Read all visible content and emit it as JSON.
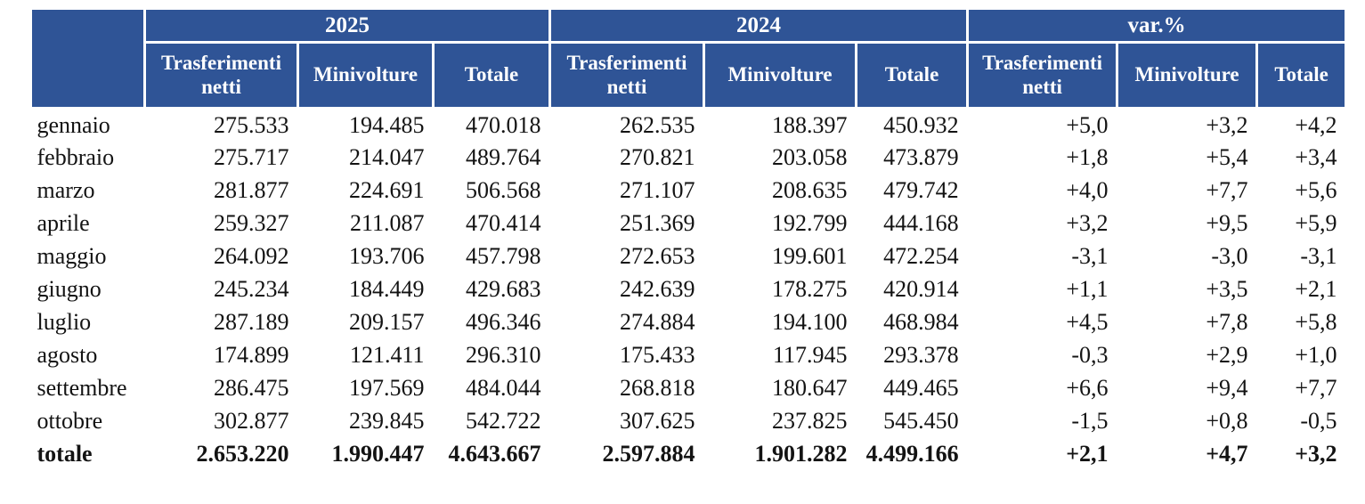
{
  "colors": {
    "header_bg": "#2F5496",
    "header_text": "#FFFFFF",
    "body_text": "#131313",
    "page_bg": "#FFFFFF"
  },
  "table": {
    "groups": [
      {
        "label": "2025"
      },
      {
        "label": "2024"
      },
      {
        "label": "var.%"
      }
    ],
    "sub_headers": [
      "Trasferimenti netti",
      "Minivolture",
      "Totale",
      "Trasferimenti netti",
      "Minivolture",
      "Totale",
      "Trasferimenti netti",
      "Minivolture",
      "Totale"
    ],
    "rows": [
      {
        "label": "gennaio",
        "bold": false,
        "values": [
          "275.533",
          "194.485",
          "470.018",
          "262.535",
          "188.397",
          "450.932",
          "+5,0",
          "+3,2",
          "+4,2"
        ]
      },
      {
        "label": "febbraio",
        "bold": false,
        "values": [
          "275.717",
          "214.047",
          "489.764",
          "270.821",
          "203.058",
          "473.879",
          "+1,8",
          "+5,4",
          "+3,4"
        ]
      },
      {
        "label": "marzo",
        "bold": false,
        "values": [
          "281.877",
          "224.691",
          "506.568",
          "271.107",
          "208.635",
          "479.742",
          "+4,0",
          "+7,7",
          "+5,6"
        ]
      },
      {
        "label": "aprile",
        "bold": false,
        "values": [
          "259.327",
          "211.087",
          "470.414",
          "251.369",
          "192.799",
          "444.168",
          "+3,2",
          "+9,5",
          "+5,9"
        ]
      },
      {
        "label": "maggio",
        "bold": false,
        "values": [
          "264.092",
          "193.706",
          "457.798",
          "272.653",
          "199.601",
          "472.254",
          "-3,1",
          "-3,0",
          "-3,1"
        ]
      },
      {
        "label": "giugno",
        "bold": false,
        "values": [
          "245.234",
          "184.449",
          "429.683",
          "242.639",
          "178.275",
          "420.914",
          "+1,1",
          "+3,5",
          "+2,1"
        ]
      },
      {
        "label": "luglio",
        "bold": false,
        "values": [
          "287.189",
          "209.157",
          "496.346",
          "274.884",
          "194.100",
          "468.984",
          "+4,5",
          "+7,8",
          "+5,8"
        ]
      },
      {
        "label": "agosto",
        "bold": false,
        "values": [
          "174.899",
          "121.411",
          "296.310",
          "175.433",
          "117.945",
          "293.378",
          "-0,3",
          "+2,9",
          "+1,0"
        ]
      },
      {
        "label": "settembre",
        "bold": false,
        "values": [
          "286.475",
          "197.569",
          "484.044",
          "268.818",
          "180.647",
          "449.465",
          "+6,6",
          "+9,4",
          "+7,7"
        ]
      },
      {
        "label": "ottobre",
        "bold": false,
        "values": [
          "302.877",
          "239.845",
          "542.722",
          "307.625",
          "237.825",
          "545.450",
          "-1,5",
          "+0,8",
          "-0,5"
        ]
      },
      {
        "label": "totale",
        "bold": true,
        "values": [
          "2.653.220",
          "1.990.447",
          "4.643.667",
          "2.597.884",
          "1.901.282",
          "4.499.166",
          "+2,1",
          "+4,7",
          "+3,2"
        ]
      }
    ]
  },
  "chart_data": {
    "type": "table",
    "title": "",
    "column_groups": [
      {
        "label": "2025",
        "columns": [
          "Trasferimenti netti",
          "Minivolture",
          "Totale"
        ]
      },
      {
        "label": "2024",
        "columns": [
          "Trasferimenti netti",
          "Minivolture",
          "Totale"
        ]
      },
      {
        "label": "var.%",
        "columns": [
          "Trasferimenti netti",
          "Minivolture",
          "Totale"
        ]
      }
    ],
    "rows": [
      {
        "label": "gennaio",
        "y2025": [
          275533,
          194485,
          470018
        ],
        "y2024": [
          262535,
          188397,
          450932
        ],
        "var_pct": [
          5.0,
          3.2,
          4.2
        ]
      },
      {
        "label": "febbraio",
        "y2025": [
          275717,
          214047,
          489764
        ],
        "y2024": [
          270821,
          203058,
          473879
        ],
        "var_pct": [
          1.8,
          5.4,
          3.4
        ]
      },
      {
        "label": "marzo",
        "y2025": [
          281877,
          224691,
          506568
        ],
        "y2024": [
          271107,
          208635,
          479742
        ],
        "var_pct": [
          4.0,
          7.7,
          5.6
        ]
      },
      {
        "label": "aprile",
        "y2025": [
          259327,
          211087,
          470414
        ],
        "y2024": [
          251369,
          192799,
          444168
        ],
        "var_pct": [
          3.2,
          9.5,
          5.9
        ]
      },
      {
        "label": "maggio",
        "y2025": [
          264092,
          193706,
          457798
        ],
        "y2024": [
          272653,
          199601,
          472254
        ],
        "var_pct": [
          -3.1,
          -3.0,
          -3.1
        ]
      },
      {
        "label": "giugno",
        "y2025": [
          245234,
          184449,
          429683
        ],
        "y2024": [
          242639,
          178275,
          420914
        ],
        "var_pct": [
          1.1,
          3.5,
          2.1
        ]
      },
      {
        "label": "luglio",
        "y2025": [
          287189,
          209157,
          496346
        ],
        "y2024": [
          274884,
          194100,
          468984
        ],
        "var_pct": [
          4.5,
          7.8,
          5.8
        ]
      },
      {
        "label": "agosto",
        "y2025": [
          174899,
          121411,
          296310
        ],
        "y2024": [
          175433,
          117945,
          293378
        ],
        "var_pct": [
          -0.3,
          2.9,
          1.0
        ]
      },
      {
        "label": "settembre",
        "y2025": [
          286475,
          197569,
          484044
        ],
        "y2024": [
          268818,
          180647,
          449465
        ],
        "var_pct": [
          6.6,
          9.4,
          7.7
        ]
      },
      {
        "label": "ottobre",
        "y2025": [
          302877,
          239845,
          542722
        ],
        "y2024": [
          307625,
          237825,
          545450
        ],
        "var_pct": [
          -1.5,
          0.8,
          -0.5
        ]
      },
      {
        "label": "totale",
        "y2025": [
          2653220,
          1990447,
          4643667
        ],
        "y2024": [
          2597884,
          1901282,
          4499166
        ],
        "var_pct": [
          2.1,
          4.7,
          3.2
        ]
      }
    ],
    "number_format": "it-IT (thousands separator '.', decimal ',')"
  }
}
